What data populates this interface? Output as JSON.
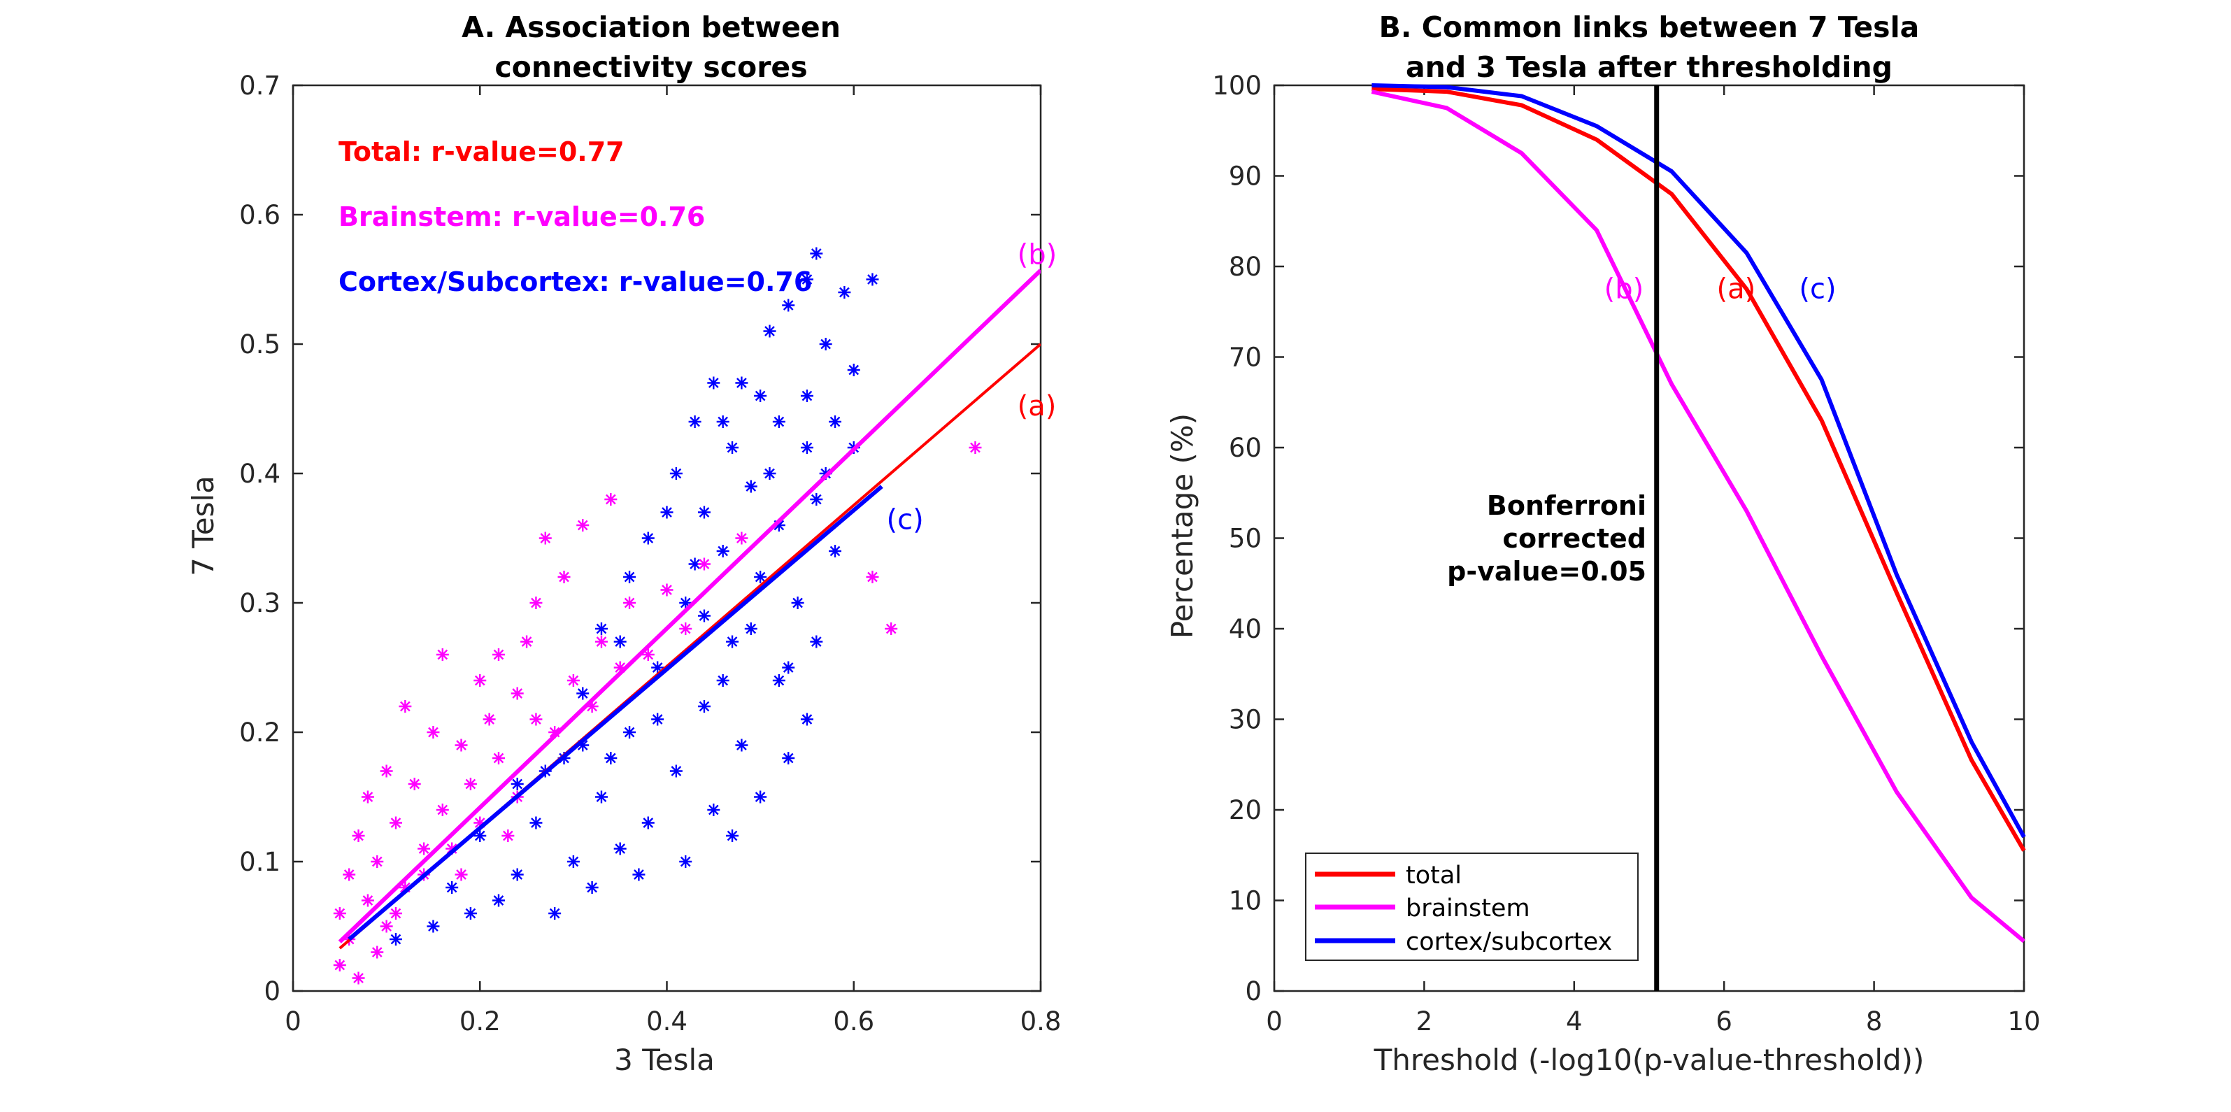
{
  "chart_data": [
    {
      "type": "scatter",
      "panel": "A",
      "title": [
        "A. Association between",
        "connectivity scores"
      ],
      "xlabel": "3 Tesla",
      "ylabel": "7 Tesla",
      "xlim": [
        0,
        0.8
      ],
      "ylim": [
        0,
        0.7
      ],
      "xticks": [
        0,
        0.2,
        0.4,
        0.6,
        0.8
      ],
      "yticks": [
        0,
        0.1,
        0.2,
        0.3,
        0.4,
        0.5,
        0.6,
        0.7
      ],
      "xtick_labels": [
        "0",
        "0.2",
        "0.4",
        "0.6",
        "0.8"
      ],
      "ytick_labels": [
        "0",
        "0.1",
        "0.2",
        "0.3",
        "0.4",
        "0.5",
        "0.6",
        "0.7"
      ],
      "stats": [
        {
          "text": "Total: r-value=0.77",
          "color": "#ff0000"
        },
        {
          "text": "Brainstem: r-value=0.76",
          "color": "#ff00ff"
        },
        {
          "text": "Cortex/Subcortex: r-value=0.76",
          "color": "#0000ff"
        }
      ],
      "scatter_series": [
        {
          "name": "cortex/subcortex",
          "color": "#0000ff",
          "marker": "asterisk",
          "points": [
            [
              0.56,
              0.57
            ],
            [
              0.62,
              0.55
            ],
            [
              0.55,
              0.55
            ],
            [
              0.59,
              0.54
            ],
            [
              0.53,
              0.53
            ],
            [
              0.51,
              0.51
            ],
            [
              0.57,
              0.5
            ],
            [
              0.48,
              0.47
            ],
            [
              0.45,
              0.47
            ],
            [
              0.6,
              0.48
            ],
            [
              0.5,
              0.46
            ],
            [
              0.43,
              0.44
            ],
            [
              0.52,
              0.44
            ],
            [
              0.47,
              0.42
            ],
            [
              0.55,
              0.42
            ],
            [
              0.41,
              0.4
            ],
            [
              0.49,
              0.39
            ],
            [
              0.56,
              0.38
            ],
            [
              0.44,
              0.37
            ],
            [
              0.52,
              0.36
            ],
            [
              0.38,
              0.35
            ],
            [
              0.46,
              0.34
            ],
            [
              0.58,
              0.34
            ],
            [
              0.36,
              0.32
            ],
            [
              0.5,
              0.32
            ],
            [
              0.42,
              0.3
            ],
            [
              0.54,
              0.3
            ],
            [
              0.33,
              0.28
            ],
            [
              0.47,
              0.27
            ],
            [
              0.56,
              0.27
            ],
            [
              0.39,
              0.25
            ],
            [
              0.52,
              0.24
            ],
            [
              0.31,
              0.23
            ],
            [
              0.44,
              0.22
            ],
            [
              0.55,
              0.21
            ],
            [
              0.36,
              0.2
            ],
            [
              0.48,
              0.19
            ],
            [
              0.53,
              0.18
            ],
            [
              0.29,
              0.18
            ],
            [
              0.41,
              0.17
            ],
            [
              0.5,
              0.15
            ],
            [
              0.33,
              0.15
            ],
            [
              0.45,
              0.14
            ],
            [
              0.38,
              0.13
            ],
            [
              0.47,
              0.12
            ],
            [
              0.26,
              0.13
            ],
            [
              0.35,
              0.11
            ],
            [
              0.42,
              0.1
            ],
            [
              0.3,
              0.1
            ],
            [
              0.37,
              0.09
            ],
            [
              0.24,
              0.09
            ],
            [
              0.32,
              0.08
            ],
            [
              0.22,
              0.07
            ],
            [
              0.28,
              0.06
            ],
            [
              0.15,
              0.05
            ],
            [
              0.19,
              0.06
            ],
            [
              0.11,
              0.04
            ],
            [
              0.55,
              0.46
            ],
            [
              0.58,
              0.44
            ],
            [
              0.46,
              0.44
            ],
            [
              0.4,
              0.37
            ],
            [
              0.35,
              0.27
            ],
            [
              0.43,
              0.33
            ],
            [
              0.49,
              0.28
            ],
            [
              0.27,
              0.17
            ],
            [
              0.2,
              0.12
            ],
            [
              0.17,
              0.08
            ],
            [
              0.24,
              0.16
            ],
            [
              0.31,
              0.19
            ],
            [
              0.57,
              0.4
            ],
            [
              0.6,
              0.42
            ],
            [
              0.51,
              0.4
            ],
            [
              0.44,
              0.29
            ],
            [
              0.39,
              0.21
            ],
            [
              0.53,
              0.25
            ],
            [
              0.46,
              0.24
            ],
            [
              0.34,
              0.18
            ]
          ]
        },
        {
          "name": "brainstem",
          "color": "#ff00ff",
          "marker": "asterisk",
          "points": [
            [
              0.73,
              0.42
            ],
            [
              0.62,
              0.32
            ],
            [
              0.64,
              0.28
            ],
            [
              0.34,
              0.38
            ],
            [
              0.31,
              0.36
            ],
            [
              0.27,
              0.35
            ],
            [
              0.16,
              0.26
            ],
            [
              0.22,
              0.26
            ],
            [
              0.26,
              0.3
            ],
            [
              0.29,
              0.32
            ],
            [
              0.24,
              0.23
            ],
            [
              0.2,
              0.24
            ],
            [
              0.12,
              0.22
            ],
            [
              0.15,
              0.2
            ],
            [
              0.18,
              0.19
            ],
            [
              0.1,
              0.17
            ],
            [
              0.13,
              0.16
            ],
            [
              0.08,
              0.15
            ],
            [
              0.16,
              0.14
            ],
            [
              0.11,
              0.13
            ],
            [
              0.07,
              0.12
            ],
            [
              0.14,
              0.11
            ],
            [
              0.09,
              0.1
            ],
            [
              0.06,
              0.09
            ],
            [
              0.12,
              0.08
            ],
            [
              0.08,
              0.07
            ],
            [
              0.05,
              0.06
            ],
            [
              0.1,
              0.05
            ],
            [
              0.06,
              0.04
            ],
            [
              0.05,
              0.02
            ],
            [
              0.07,
              0.01
            ],
            [
              0.19,
              0.16
            ],
            [
              0.22,
              0.18
            ],
            [
              0.26,
              0.21
            ],
            [
              0.3,
              0.24
            ],
            [
              0.33,
              0.27
            ],
            [
              0.36,
              0.3
            ],
            [
              0.4,
              0.31
            ],
            [
              0.38,
              0.26
            ],
            [
              0.28,
              0.2
            ],
            [
              0.24,
              0.15
            ],
            [
              0.2,
              0.13
            ],
            [
              0.17,
              0.11
            ],
            [
              0.14,
              0.09
            ],
            [
              0.18,
              0.09
            ],
            [
              0.23,
              0.12
            ],
            [
              0.32,
              0.22
            ],
            [
              0.35,
              0.25
            ],
            [
              0.42,
              0.28
            ],
            [
              0.44,
              0.33
            ],
            [
              0.48,
              0.35
            ],
            [
              0.25,
              0.27
            ],
            [
              0.21,
              0.21
            ],
            [
              0.09,
              0.03
            ],
            [
              0.11,
              0.06
            ]
          ]
        }
      ],
      "fit_lines": [
        {
          "label": "(a)",
          "name": "total",
          "color": "#ff0000",
          "x": [
            0.05,
            0.8
          ],
          "y": [
            0.033,
            0.5
          ]
        },
        {
          "label": "(b)",
          "name": "brainstem",
          "color": "#ff00ff",
          "x": [
            0.05,
            0.8
          ],
          "y": [
            0.038,
            0.557
          ]
        },
        {
          "label": "(c)",
          "name": "cortex/subcortex",
          "color": "#0000ff",
          "x": [
            0.06,
            0.63
          ],
          "y": [
            0.04,
            0.39
          ]
        }
      ],
      "annotations": [
        {
          "text": "(a)",
          "color": "#ff0000",
          "x": 0.775,
          "y": 0.445
        },
        {
          "text": "(b)",
          "color": "#ff00ff",
          "x": 0.775,
          "y": 0.562
        },
        {
          "text": "(c)",
          "color": "#0000ff",
          "x": 0.635,
          "y": 0.357
        }
      ]
    },
    {
      "type": "line",
      "panel": "B",
      "title": [
        "B. Common links between 7 Tesla",
        "and 3 Tesla after thresholding"
      ],
      "xlabel": "Threshold (-log10(p-value-threshold))",
      "ylabel": "Percentage (%)",
      "xlim": [
        0,
        10
      ],
      "ylim": [
        0,
        100
      ],
      "xticks": [
        0,
        2,
        4,
        6,
        8,
        10
      ],
      "yticks": [
        0,
        10,
        20,
        30,
        40,
        50,
        60,
        70,
        80,
        90,
        100
      ],
      "xtick_labels": [
        "0",
        "2",
        "4",
        "6",
        "8",
        "10"
      ],
      "ytick_labels": [
        "0",
        "10",
        "20",
        "30",
        "40",
        "50",
        "60",
        "70",
        "80",
        "90",
        "100"
      ],
      "series": [
        {
          "name": "total",
          "color": "#ff0000",
          "x": [
            1.3,
            2.3,
            3.3,
            4.3,
            5.3,
            6.3,
            7.3,
            8.3,
            9.3,
            10
          ],
          "y": [
            99.6,
            99.3,
            97.8,
            94,
            88,
            77.5,
            63,
            44,
            25.5,
            15.5
          ]
        },
        {
          "name": "brainstem",
          "color": "#ff00ff",
          "x": [
            1.3,
            2.3,
            3.3,
            4.3,
            5.3,
            6.3,
            7.3,
            8.3,
            9.3,
            10
          ],
          "y": [
            99.3,
            97.5,
            92.5,
            84,
            67,
            53,
            37,
            22,
            10.3,
            5.5
          ]
        },
        {
          "name": "cortex/subcortex",
          "color": "#0000ff",
          "x": [
            1.3,
            2.3,
            3.3,
            4.3,
            5.3,
            6.3,
            7.3,
            8.3,
            9.3,
            10
          ],
          "y": [
            100,
            99.8,
            98.8,
            95.5,
            90.5,
            81.5,
            67.5,
            46,
            27.5,
            17
          ]
        }
      ],
      "vline": {
        "x": 5.1,
        "color": "#000000",
        "label": [
          "Bonferroni",
          "corrected",
          "p-value=0.05"
        ]
      },
      "annotations": [
        {
          "text": "(b)",
          "color": "#ff00ff",
          "x": 4.4,
          "y": 76.5
        },
        {
          "text": "(a)",
          "color": "#ff0000",
          "x": 5.9,
          "y": 76.5
        },
        {
          "text": "(c)",
          "color": "#0000ff",
          "x": 7,
          "y": 76.5
        }
      ],
      "legend": {
        "placement": "bottom-left",
        "entries": [
          "total",
          "brainstem",
          "cortex/subcortex"
        ]
      }
    }
  ]
}
